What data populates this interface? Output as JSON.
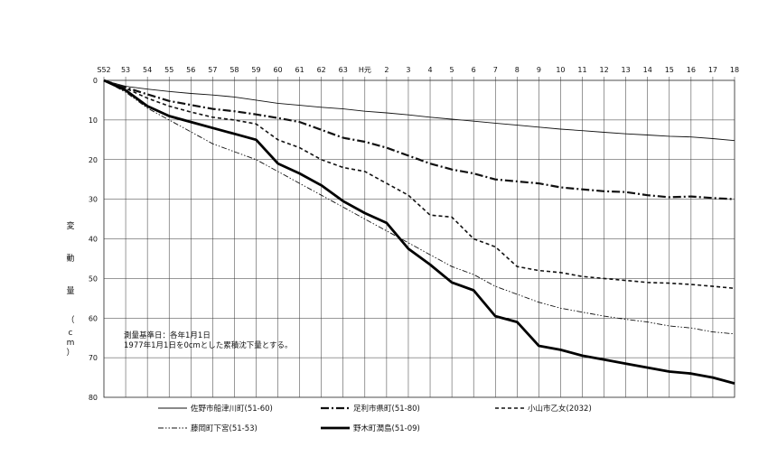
{
  "chart_data": {
    "type": "line",
    "x": [
      "S52",
      "53",
      "54",
      "55",
      "56",
      "57",
      "58",
      "59",
      "60",
      "61",
      "62",
      "63",
      "H元",
      "2",
      "3",
      "4",
      "5",
      "6",
      "7",
      "8",
      "9",
      "10",
      "11",
      "12",
      "13",
      "14",
      "15",
      "16",
      "17",
      "18"
    ],
    "ylim": [
      0,
      80
    ],
    "y_ticks": [
      "0",
      "10",
      "20",
      "30",
      "40",
      "50",
      "60",
      "70",
      "80"
    ],
    "y_inverted": true,
    "grid": true,
    "ylabel_chars": [
      "変",
      "動",
      "量",
      "（",
      "c",
      "m",
      "）"
    ],
    "note": [
      "測量基準日：各年1月1日",
      "1977年1月1日を0cmとした累積沈下量とする。"
    ],
    "legend_position": "bottom",
    "series": [
      {
        "name": "佐野市船津川町(51-60)",
        "style": "solid-thin",
        "color": "#111111",
        "values": [
          0,
          1.5,
          2.2,
          2.8,
          3.3,
          3.7,
          4.2,
          5,
          5.8,
          6.3,
          6.8,
          7.2,
          7.8,
          8.2,
          8.7,
          9.3,
          9.8,
          10.3,
          10.8,
          11.3,
          11.8,
          12.3,
          12.7,
          13.1,
          13.5,
          13.8,
          14.1,
          14.3,
          14.7,
          15.2
        ]
      },
      {
        "name": "足利市県町(51-80)",
        "style": "dash-dot",
        "color": "#111111",
        "values": [
          0,
          1.8,
          3.5,
          5.2,
          6.2,
          7.2,
          7.8,
          8.6,
          9.5,
          10.5,
          12.5,
          14.5,
          15.5,
          17,
          19,
          21,
          22.5,
          23.5,
          25,
          25.5,
          26,
          27,
          27.5,
          28,
          28.2,
          29,
          29.5,
          29.3,
          29.7,
          30
        ]
      },
      {
        "name": "小山市乙女(2032)",
        "style": "short-dash",
        "color": "#111111",
        "values": [
          0,
          2,
          4.5,
          6.5,
          8,
          9.3,
          10,
          11,
          15,
          17,
          20,
          22,
          23,
          26,
          29,
          34,
          34.5,
          40,
          42,
          47,
          48,
          48.5,
          49.5,
          50,
          50.5,
          51,
          51.2,
          51.5,
          52,
          52.5
        ]
      },
      {
        "name": "藤岡町下宮(51-53)",
        "style": "dash-dot-dot",
        "color": "#111111",
        "values": [
          0,
          3,
          7,
          10,
          13,
          16,
          18,
          20,
          23,
          26,
          29,
          32,
          35,
          38,
          41,
          44,
          47,
          49,
          52,
          54,
          56,
          57.5,
          58.5,
          59.5,
          60.3,
          61,
          62,
          62.5,
          63.5,
          64
        ]
      },
      {
        "name": "野木町潤島(51-09)",
        "style": "solid-thick",
        "color": "#000000",
        "values": [
          0,
          2.5,
          6.5,
          9,
          10.5,
          12,
          13.5,
          15,
          21,
          23.5,
          26.5,
          30.5,
          33.5,
          36,
          42.5,
          46.5,
          51,
          53,
          59.5,
          61,
          67,
          68,
          69.5,
          70.5,
          71.5,
          72.5,
          73.5,
          74,
          75,
          76.5
        ]
      }
    ]
  }
}
